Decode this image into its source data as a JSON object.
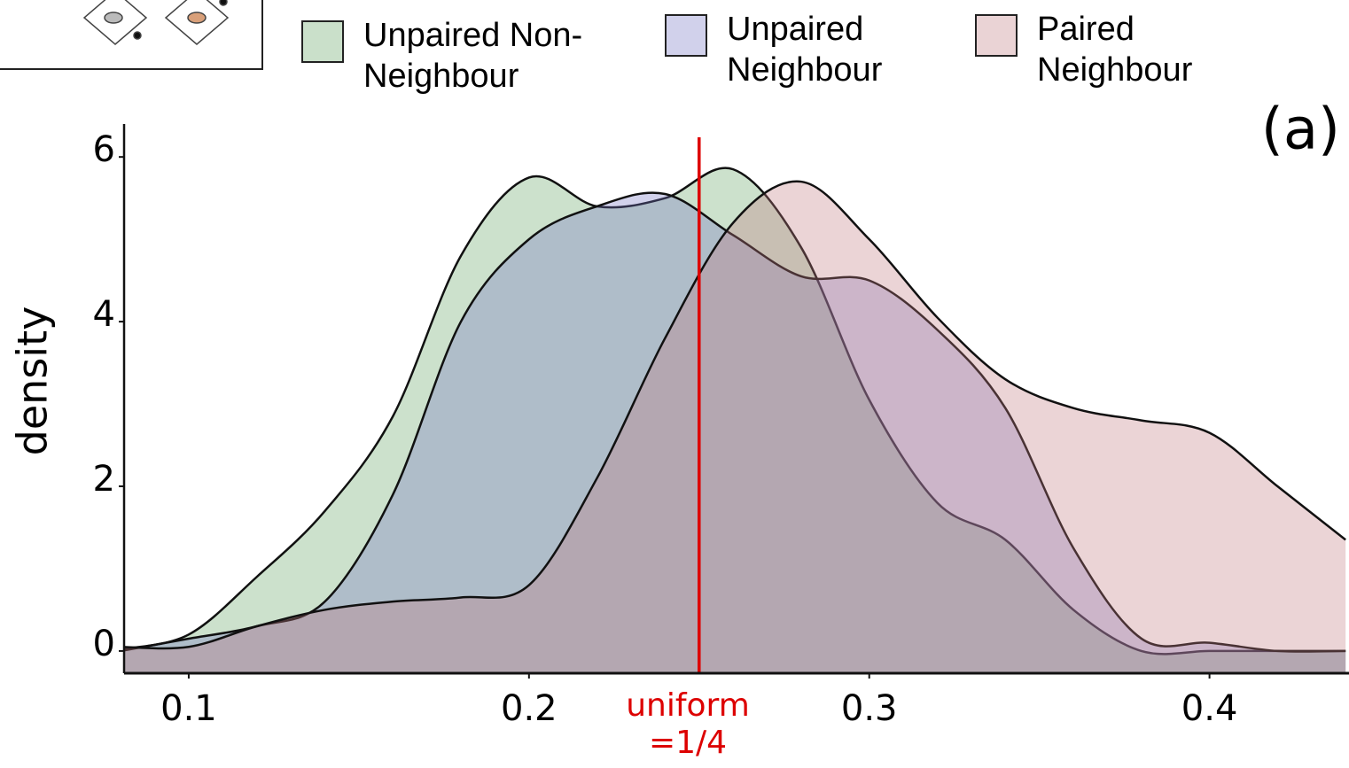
{
  "chart_data": {
    "type": "density",
    "y_label": "density",
    "panel_label": "(a)",
    "x": [
      0.08,
      0.1,
      0.12,
      0.14,
      0.16,
      0.18,
      0.2,
      0.22,
      0.24,
      0.26,
      0.28,
      0.3,
      0.32,
      0.34,
      0.36,
      0.38,
      0.4,
      0.42,
      0.44
    ],
    "series": [
      {
        "name": "Unpaired Non-Neighbour",
        "color": "#5fa25f",
        "values": [
          0.02,
          0.2,
          0.9,
          1.7,
          2.85,
          4.8,
          5.75,
          5.4,
          5.5,
          5.85,
          4.9,
          3.05,
          1.8,
          1.35,
          0.5,
          0.0,
          0.0,
          0.0,
          0.0
        ]
      },
      {
        "name": "Unpaired Neighbour",
        "color": "#7474c4",
        "values": [
          0.0,
          0.15,
          0.3,
          0.6,
          1.9,
          4.0,
          5.0,
          5.4,
          5.55,
          5.05,
          4.55,
          4.5,
          3.9,
          2.95,
          1.25,
          0.15,
          0.1,
          0.0,
          0.0
        ]
      },
      {
        "name": "Paired Neighbour",
        "color": "#c07a80",
        "values": [
          0.05,
          0.05,
          0.3,
          0.5,
          0.6,
          0.65,
          0.8,
          2.1,
          3.8,
          5.2,
          5.7,
          5.0,
          4.05,
          3.3,
          2.95,
          2.8,
          2.65,
          2.0,
          1.35
        ]
      }
    ],
    "reference_line": {
      "x": 0.25,
      "label": "uniform =1/4",
      "color": "#dd0000"
    },
    "xlim": [
      0.081,
      0.441
    ],
    "ylim": [
      -0.27,
      6.4
    ],
    "xticks": [
      0.1,
      0.2,
      0.3,
      0.4
    ],
    "yticks": [
      0,
      2,
      4,
      6
    ]
  }
}
